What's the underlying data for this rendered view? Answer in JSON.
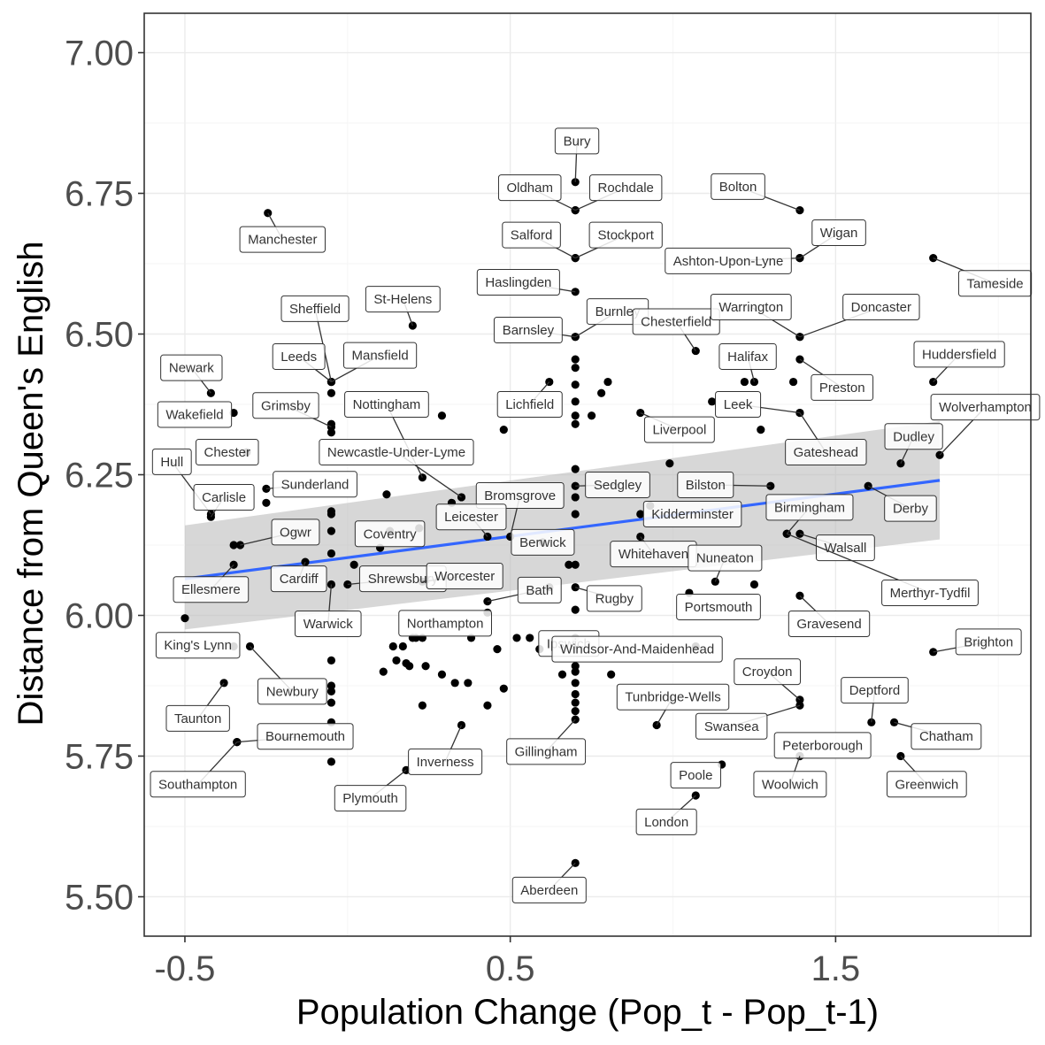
{
  "chart_data": {
    "type": "scatter",
    "title": "",
    "xlabel": "Population Change (Pop_t - Pop_t-1)",
    "ylabel": "Distance from Queen's English",
    "xlim": [
      -0.625,
      2.1
    ],
    "ylim": [
      5.43,
      7.07
    ],
    "x_ticks": [
      -0.5,
      0.5,
      1.5
    ],
    "x_tick_labels": [
      "-0.5",
      "0.5",
      "1.5"
    ],
    "y_ticks": [
      5.5,
      5.75,
      6.0,
      6.25,
      6.5,
      6.75,
      7.0
    ],
    "y_tick_labels": [
      "5.50",
      "5.75",
      "6.00",
      "6.25",
      "6.50",
      "6.75",
      "7.00"
    ],
    "grid": true,
    "colors": {
      "points": "#000000",
      "trend": "#3366ff",
      "band": "#bdbdbd"
    },
    "trend_line": {
      "x": [
        -0.5,
        1.82
      ],
      "y": [
        6.065,
        6.24
      ]
    },
    "confidence_band": {
      "x": [
        -0.5,
        1.82
      ],
      "lower": [
        5.975,
        6.135
      ],
      "upper": [
        6.16,
        6.345
      ]
    },
    "labeled_points": [
      {
        "name": "Manchester",
        "x": -0.245,
        "y": 6.715,
        "lx": -0.2,
        "ly": 6.668
      },
      {
        "name": "Bury",
        "x": 0.7,
        "y": 6.77,
        "lx": 0.705,
        "ly": 6.843
      },
      {
        "name": "Oldham",
        "x": 0.7,
        "y": 6.72,
        "lx": 0.56,
        "ly": 6.76
      },
      {
        "name": "Rochdale",
        "x": 0.7,
        "y": 6.72,
        "lx": 0.855,
        "ly": 6.76
      },
      {
        "name": "Salford",
        "x": 0.7,
        "y": 6.635,
        "lx": 0.565,
        "ly": 6.676
      },
      {
        "name": "Stockport",
        "x": 0.7,
        "y": 6.635,
        "lx": 0.855,
        "ly": 6.676
      },
      {
        "name": "Bolton",
        "x": 1.39,
        "y": 6.72,
        "lx": 1.2,
        "ly": 6.762
      },
      {
        "name": "Wigan",
        "x": 1.39,
        "y": 6.635,
        "lx": 1.51,
        "ly": 6.68
      },
      {
        "name": "Ashton-Upon-Lyne",
        "x": 1.39,
        "y": 6.635,
        "lx": 1.17,
        "ly": 6.63
      },
      {
        "name": "Tameside",
        "x": 1.8,
        "y": 6.635,
        "lx": 1.99,
        "ly": 6.59
      },
      {
        "name": "Haslingden",
        "x": 0.7,
        "y": 6.575,
        "lx": 0.525,
        "ly": 6.592
      },
      {
        "name": "Burnley",
        "x": 0.7,
        "y": 6.495,
        "lx": 0.83,
        "ly": 6.54
      },
      {
        "name": "Barnsley",
        "x": 0.7,
        "y": 6.495,
        "lx": 0.555,
        "ly": 6.507
      },
      {
        "name": "Chesterfield",
        "x": 1.07,
        "y": 6.47,
        "lx": 1.01,
        "ly": 6.522
      },
      {
        "name": "Warrington",
        "x": 1.39,
        "y": 6.495,
        "lx": 1.24,
        "ly": 6.548
      },
      {
        "name": "Doncaster",
        "x": 1.39,
        "y": 6.495,
        "lx": 1.64,
        "ly": 6.548
      },
      {
        "name": "Halifax",
        "x": 1.25,
        "y": 6.415,
        "lx": 1.23,
        "ly": 6.46
      },
      {
        "name": "Huddersfield",
        "x": 1.8,
        "y": 6.415,
        "lx": 1.88,
        "ly": 6.464
      },
      {
        "name": "Preston",
        "x": 1.39,
        "y": 6.455,
        "lx": 1.52,
        "ly": 6.405
      },
      {
        "name": "Sheffield",
        "x": -0.05,
        "y": 6.415,
        "lx": -0.1,
        "ly": 6.545
      },
      {
        "name": "St-Helens",
        "x": 0.2,
        "y": 6.515,
        "lx": 0.17,
        "ly": 6.562
      },
      {
        "name": "Leeds",
        "x": -0.05,
        "y": 6.415,
        "lx": -0.15,
        "ly": 6.46
      },
      {
        "name": "Mansfield",
        "x": -0.05,
        "y": 6.415,
        "lx": 0.1,
        "ly": 6.462
      },
      {
        "name": "Newark",
        "x": -0.42,
        "y": 6.395,
        "lx": -0.48,
        "ly": 6.44
      },
      {
        "name": "Wakefield",
        "x": -0.35,
        "y": 6.36,
        "lx": -0.47,
        "ly": 6.357
      },
      {
        "name": "Grimsby",
        "x": -0.05,
        "y": 6.335,
        "lx": -0.19,
        "ly": 6.373
      },
      {
        "name": "Nottingham",
        "x": 0.23,
        "y": 6.245,
        "lx": 0.12,
        "ly": 6.375
      },
      {
        "name": "Lichfield",
        "x": 0.62,
        "y": 6.415,
        "lx": 0.56,
        "ly": 6.375
      },
      {
        "name": "Leek",
        "x": 1.39,
        "y": 6.36,
        "lx": 1.2,
        "ly": 6.375
      },
      {
        "name": "Liverpool",
        "x": 0.9,
        "y": 6.36,
        "lx": 1.02,
        "ly": 6.33
      },
      {
        "name": "Chester",
        "x": -0.31,
        "y": 6.29,
        "lx": -0.37,
        "ly": 6.29
      },
      {
        "name": "Newcastle-Under-Lyme",
        "x": 0.35,
        "y": 6.21,
        "lx": 0.15,
        "ly": 6.29
      },
      {
        "name": "Gateshead",
        "x": 1.39,
        "y": 6.36,
        "lx": 1.47,
        "ly": 6.29
      },
      {
        "name": "Dudley",
        "x": 1.7,
        "y": 6.27,
        "lx": 1.74,
        "ly": 6.318
      },
      {
        "name": "Wolverhampton",
        "x": 1.82,
        "y": 6.285,
        "lx": 1.96,
        "ly": 6.37
      },
      {
        "name": "Hull",
        "x": -0.42,
        "y": 6.18,
        "lx": -0.54,
        "ly": 6.273
      },
      {
        "name": "Sedgley",
        "x": 0.7,
        "y": 6.23,
        "lx": 0.83,
        "ly": 6.232
      },
      {
        "name": "Bilston",
        "x": 1.3,
        "y": 6.23,
        "lx": 1.1,
        "ly": 6.232
      },
      {
        "name": "Carlisle",
        "x": -0.42,
        "y": 6.175,
        "lx": -0.38,
        "ly": 6.21
      },
      {
        "name": "Sunderland",
        "x": -0.25,
        "y": 6.225,
        "lx": -0.1,
        "ly": 6.233
      },
      {
        "name": "Bromsgrove",
        "x": 0.5,
        "y": 6.14,
        "lx": 0.53,
        "ly": 6.213
      },
      {
        "name": "Leicester",
        "x": 0.43,
        "y": 6.14,
        "lx": 0.38,
        "ly": 6.175
      },
      {
        "name": "Birmingham",
        "x": 1.35,
        "y": 6.145,
        "lx": 1.42,
        "ly": 6.192
      },
      {
        "name": "Derby",
        "x": 1.6,
        "y": 6.23,
        "lx": 1.73,
        "ly": 6.19
      },
      {
        "name": "Kidderminster",
        "x": 0.9,
        "y": 6.18,
        "lx": 1.06,
        "ly": 6.18
      },
      {
        "name": "Ogwr",
        "x": -0.33,
        "y": 6.125,
        "lx": -0.16,
        "ly": 6.148
      },
      {
        "name": "Coventry",
        "x": 0.13,
        "y": 6.15,
        "lx": 0.13,
        "ly": 6.145
      },
      {
        "name": "Berwick",
        "x": 0.6,
        "y": 6.13,
        "lx": 0.6,
        "ly": 6.13
      },
      {
        "name": "Walsall",
        "x": 1.39,
        "y": 6.145,
        "lx": 1.53,
        "ly": 6.12
      },
      {
        "name": "Whitehaven",
        "x": 0.9,
        "y": 6.14,
        "lx": 0.94,
        "ly": 6.109
      },
      {
        "name": "Nuneaton",
        "x": 1.13,
        "y": 6.06,
        "lx": 1.16,
        "ly": 6.102
      },
      {
        "name": "Ellesmere",
        "x": -0.35,
        "y": 6.09,
        "lx": -0.42,
        "ly": 6.046
      },
      {
        "name": "Cardiff",
        "x": -0.13,
        "y": 6.095,
        "lx": -0.15,
        "ly": 6.065
      },
      {
        "name": "Shrewsbury",
        "x": 0.0,
        "y": 6.055,
        "lx": 0.17,
        "ly": 6.065
      },
      {
        "name": "Worcester",
        "x": 0.23,
        "y": 6.06,
        "lx": 0.36,
        "ly": 6.07
      },
      {
        "name": "Merthyr-Tydfil",
        "x": 1.35,
        "y": 6.145,
        "lx": 1.79,
        "ly": 6.04
      },
      {
        "name": "Bath",
        "x": 0.43,
        "y": 6.025,
        "lx": 0.59,
        "ly": 6.045
      },
      {
        "name": "Rugby",
        "x": 0.7,
        "y": 6.05,
        "lx": 0.82,
        "ly": 6.03
      },
      {
        "name": "Portsmouth",
        "x": 1.05,
        "y": 6.04,
        "lx": 1.14,
        "ly": 6.015
      },
      {
        "name": "Warwick",
        "x": -0.05,
        "y": 6.055,
        "lx": -0.06,
        "ly": 5.985
      },
      {
        "name": "Northampton",
        "x": 0.43,
        "y": 6.005,
        "lx": 0.3,
        "ly": 5.986
      },
      {
        "name": "Gravesend",
        "x": 1.39,
        "y": 6.035,
        "lx": 1.48,
        "ly": 5.985
      },
      {
        "name": "King's Lynn",
        "x": -0.35,
        "y": 5.945,
        "lx": -0.46,
        "ly": 5.947
      },
      {
        "name": "Ipswich",
        "x": 0.7,
        "y": 5.94,
        "lx": 0.68,
        "ly": 5.95
      },
      {
        "name": "Windsor-And-Maidenhead",
        "x": 1.07,
        "y": 5.945,
        "lx": 0.89,
        "ly": 5.94
      },
      {
        "name": "Brighton",
        "x": 1.8,
        "y": 5.935,
        "lx": 1.97,
        "ly": 5.953
      },
      {
        "name": "Croydon",
        "x": 1.39,
        "y": 5.85,
        "lx": 1.29,
        "ly": 5.9
      },
      {
        "name": "Newbury",
        "x": -0.3,
        "y": 5.945,
        "lx": -0.17,
        "ly": 5.865
      },
      {
        "name": "Deptford",
        "x": 1.61,
        "y": 5.81,
        "lx": 1.62,
        "ly": 5.867
      },
      {
        "name": "Tunbridge-Wells",
        "x": 0.95,
        "y": 5.805,
        "lx": 1.0,
        "ly": 5.855
      },
      {
        "name": "Taunton",
        "x": -0.38,
        "y": 5.88,
        "lx": -0.46,
        "ly": 5.817
      },
      {
        "name": "Bournemouth",
        "x": -0.34,
        "y": 5.775,
        "lx": -0.13,
        "ly": 5.785
      },
      {
        "name": "Swansea",
        "x": 1.39,
        "y": 5.84,
        "lx": 1.18,
        "ly": 5.803
      },
      {
        "name": "Chatham",
        "x": 1.68,
        "y": 5.81,
        "lx": 1.84,
        "ly": 5.785
      },
      {
        "name": "Inverness",
        "x": 0.35,
        "y": 5.805,
        "lx": 0.3,
        "ly": 5.74
      },
      {
        "name": "Gillingham",
        "x": 0.7,
        "y": 5.815,
        "lx": 0.61,
        "ly": 5.758
      },
      {
        "name": "Peterborough",
        "x": 1.39,
        "y": 5.75,
        "lx": 1.46,
        "ly": 5.769
      },
      {
        "name": "Southampton",
        "x": -0.34,
        "y": 5.775,
        "lx": -0.46,
        "ly": 5.7
      },
      {
        "name": "Poole",
        "x": 1.15,
        "y": 5.735,
        "lx": 1.07,
        "ly": 5.716
      },
      {
        "name": "Woolwich",
        "x": 1.39,
        "y": 5.75,
        "lx": 1.36,
        "ly": 5.7
      },
      {
        "name": "Greenwich",
        "x": 1.7,
        "y": 5.75,
        "lx": 1.78,
        "ly": 5.7
      },
      {
        "name": "Plymouth",
        "x": 0.18,
        "y": 5.725,
        "lx": 0.07,
        "ly": 5.675
      },
      {
        "name": "London",
        "x": 1.07,
        "y": 5.68,
        "lx": 0.98,
        "ly": 5.633
      },
      {
        "name": "Aberdeen",
        "x": 0.7,
        "y": 5.56,
        "lx": 0.62,
        "ly": 5.512
      }
    ],
    "unlabeled_points": [
      {
        "x": 0.7,
        "y": 6.455
      },
      {
        "x": 0.7,
        "y": 6.44
      },
      {
        "x": 0.7,
        "y": 6.41
      },
      {
        "x": 0.7,
        "y": 6.38
      },
      {
        "x": 0.7,
        "y": 6.355
      },
      {
        "x": 0.7,
        "y": 6.34
      },
      {
        "x": 0.7,
        "y": 6.26
      },
      {
        "x": 0.7,
        "y": 6.21
      },
      {
        "x": 0.7,
        "y": 6.18
      },
      {
        "x": 0.7,
        "y": 6.09
      },
      {
        "x": 0.7,
        "y": 6.01
      },
      {
        "x": 0.7,
        "y": 5.96
      },
      {
        "x": 0.7,
        "y": 5.91
      },
      {
        "x": 0.7,
        "y": 5.88
      },
      {
        "x": 0.7,
        "y": 5.86
      },
      {
        "x": 0.7,
        "y": 5.845
      },
      {
        "x": 0.7,
        "y": 5.83
      },
      {
        "x": 0.7,
        "y": 5.9
      },
      {
        "x": 0.8,
        "y": 6.415
      },
      {
        "x": 0.78,
        "y": 6.395
      },
      {
        "x": 0.75,
        "y": 6.355
      },
      {
        "x": 1.12,
        "y": 6.38
      },
      {
        "x": 1.27,
        "y": 6.33
      },
      {
        "x": 1.22,
        "y": 6.415
      },
      {
        "x": 1.37,
        "y": 6.415
      },
      {
        "x": 1.25,
        "y": 6.055
      },
      {
        "x": 0.99,
        "y": 6.27
      },
      {
        "x": 0.93,
        "y": 6.195
      },
      {
        "x": -0.05,
        "y": 6.395
      },
      {
        "x": -0.05,
        "y": 6.34
      },
      {
        "x": -0.05,
        "y": 6.325
      },
      {
        "x": -0.05,
        "y": 6.185
      },
      {
        "x": -0.05,
        "y": 6.18
      },
      {
        "x": -0.05,
        "y": 6.15
      },
      {
        "x": -0.05,
        "y": 6.11
      },
      {
        "x": -0.05,
        "y": 5.92
      },
      {
        "x": -0.05,
        "y": 5.875
      },
      {
        "x": -0.05,
        "y": 5.865
      },
      {
        "x": -0.05,
        "y": 5.845
      },
      {
        "x": -0.05,
        "y": 5.81
      },
      {
        "x": -0.05,
        "y": 5.74
      },
      {
        "x": -0.25,
        "y": 6.2
      },
      {
        "x": -0.5,
        "y": 5.995
      },
      {
        "x": -0.35,
        "y": 6.125
      },
      {
        "x": 0.02,
        "y": 6.09
      },
      {
        "x": 0.1,
        "y": 6.12
      },
      {
        "x": 0.12,
        "y": 6.215
      },
      {
        "x": 0.22,
        "y": 6.155
      },
      {
        "x": 0.29,
        "y": 6.355
      },
      {
        "x": 0.32,
        "y": 6.2
      },
      {
        "x": 0.48,
        "y": 6.33
      },
      {
        "x": 0.68,
        "y": 6.09
      },
      {
        "x": 0.62,
        "y": 6.05
      },
      {
        "x": 0.17,
        "y": 5.945
      },
      {
        "x": 0.14,
        "y": 5.945
      },
      {
        "x": 0.15,
        "y": 5.92
      },
      {
        "x": 0.18,
        "y": 5.915
      },
      {
        "x": 0.2,
        "y": 5.96
      },
      {
        "x": 0.23,
        "y": 5.96
      },
      {
        "x": 0.24,
        "y": 5.91
      },
      {
        "x": 0.23,
        "y": 5.84
      },
      {
        "x": 0.29,
        "y": 5.895
      },
      {
        "x": 0.33,
        "y": 5.88
      },
      {
        "x": 0.37,
        "y": 5.88
      },
      {
        "x": 0.43,
        "y": 5.84
      },
      {
        "x": 0.38,
        "y": 5.96
      },
      {
        "x": 0.46,
        "y": 5.94
      },
      {
        "x": 0.48,
        "y": 5.87
      },
      {
        "x": 0.52,
        "y": 5.96
      },
      {
        "x": 0.56,
        "y": 5.96
      },
      {
        "x": 0.59,
        "y": 5.94
      },
      {
        "x": 0.66,
        "y": 5.895
      },
      {
        "x": 0.81,
        "y": 5.895
      },
      {
        "x": 0.21,
        "y": 5.96
      },
      {
        "x": 0.11,
        "y": 5.9
      },
      {
        "x": 0.19,
        "y": 5.91
      }
    ]
  }
}
